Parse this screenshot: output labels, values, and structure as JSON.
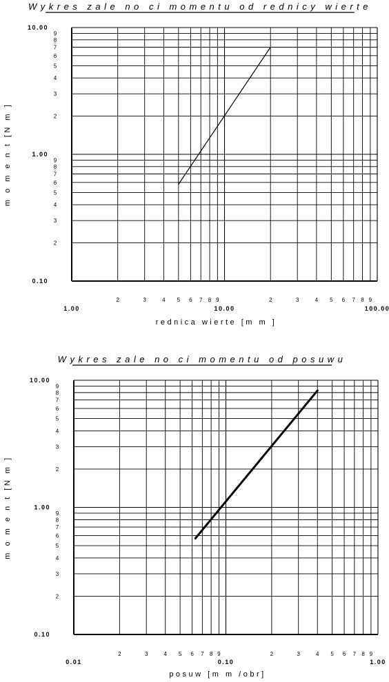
{
  "chart_data": [
    {
      "type": "line",
      "title": "Wykres zale no ci momentu od  rednicy wierte",
      "xlabel": "rednica wierte  [m m ]",
      "ylabel": "m o m e n t [N m ]",
      "x_scale": "log",
      "y_scale": "log",
      "xlim": [
        1,
        100
      ],
      "ylim": [
        0.1,
        10
      ],
      "x_major_labels": [
        "1.00",
        "10.00",
        "100.00"
      ],
      "y_major_labels": [
        "0.10",
        "1.00",
        "10.00"
      ],
      "x_minor_labels": [
        "2",
        "3",
        "4",
        "5",
        "6",
        "7",
        "8",
        "9"
      ],
      "y_minor_labels": [
        "2",
        "3",
        "4",
        "5",
        "6",
        "7",
        "8",
        "9"
      ],
      "grid": true,
      "series": [
        {
          "x": [
            5,
            20
          ],
          "y": [
            0.58,
            7.0
          ]
        }
      ]
    },
    {
      "type": "line",
      "title": "Wykres zale no ci momentu od posuwu",
      "xlabel": "posuw [m m /obr]",
      "ylabel": "m o m e n t [N m ]",
      "x_scale": "log",
      "y_scale": "log",
      "xlim": [
        0.01,
        1
      ],
      "ylim": [
        0.1,
        10
      ],
      "x_major_labels": [
        "0.01",
        "0.10",
        "1.00"
      ],
      "y_major_labels": [
        "0.10",
        "1.00",
        "10.00"
      ],
      "x_minor_labels": [
        "2",
        "3",
        "4",
        "5",
        "6",
        "7",
        "8",
        "9"
      ],
      "y_minor_labels": [
        "2",
        "3",
        "4",
        "5",
        "6",
        "7",
        "8",
        "9"
      ],
      "grid": true,
      "series": [
        {
          "x": [
            0.063,
            0.4
          ],
          "y": [
            0.57,
            8.3
          ]
        }
      ]
    }
  ]
}
